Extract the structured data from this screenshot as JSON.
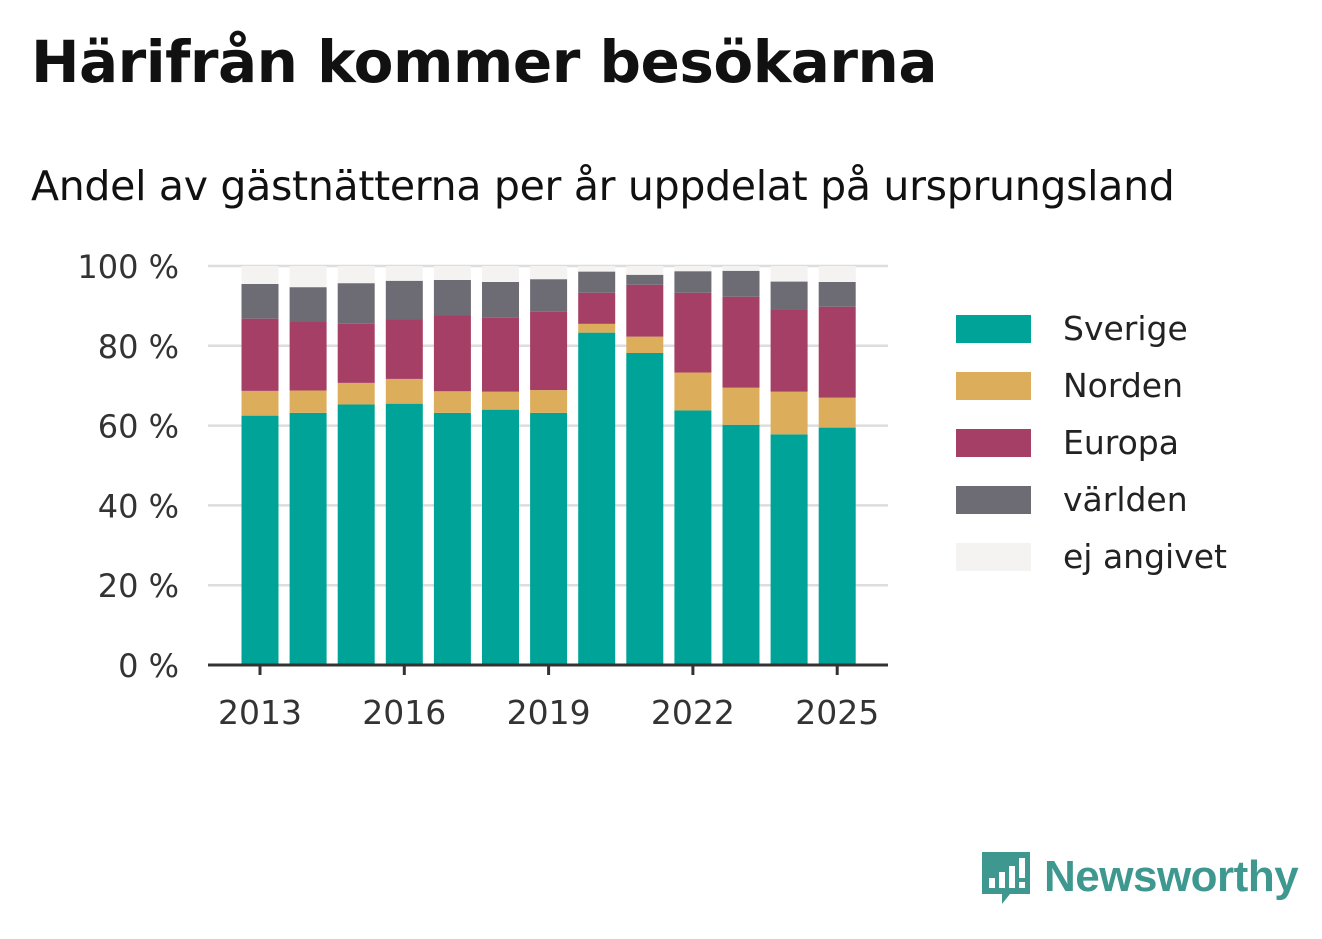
{
  "header": {
    "title": "Härifrån kommer besökarna",
    "subtitle": "Andel av gästnätterna per år uppdelat på ursprungsland"
  },
  "brand": {
    "name": "Newsworthy",
    "color": "#3f9890",
    "icon": "newsworthy-logo-icon"
  },
  "chart_data": {
    "type": "bar",
    "stacked": true,
    "categories": [
      "2013",
      "2014",
      "2015",
      "2016",
      "2017",
      "2018",
      "2019",
      "2020",
      "2021",
      "2022",
      "2023",
      "2024",
      "2025"
    ],
    "x_tick_labels": [
      "2013",
      "2016",
      "2019",
      "2022",
      "2025"
    ],
    "y_tick_labels": [
      "0 %",
      "20 %",
      "40 %",
      "60 %",
      "80 %",
      "100 %"
    ],
    "ylim": [
      0,
      100
    ],
    "grid": true,
    "legend_position": "right",
    "series": [
      {
        "name": "Sverige",
        "color": "#00a398",
        "values": [
          62.5,
          63.2,
          65.3,
          65.5,
          63.2,
          64.0,
          63.2,
          83.3,
          78.2,
          63.8,
          60.2,
          57.8,
          59.5
        ]
      },
      {
        "name": "Norden",
        "color": "#dcae5c",
        "values": [
          6.2,
          5.6,
          5.4,
          6.2,
          5.4,
          4.5,
          5.7,
          2.2,
          4.1,
          9.5,
          9.3,
          10.7,
          7.5
        ]
      },
      {
        "name": "Europa",
        "color": "#a63f65",
        "values": [
          18.1,
          17.3,
          14.8,
          15.0,
          19.0,
          18.5,
          19.6,
          7.8,
          13.0,
          20.0,
          22.8,
          20.7,
          22.8
        ]
      },
      {
        "name": "världen",
        "color": "#6d6c74",
        "values": [
          8.7,
          8.6,
          10.2,
          9.6,
          8.9,
          9.0,
          8.2,
          5.3,
          2.5,
          5.4,
          6.5,
          6.9,
          6.2
        ]
      },
      {
        "name": "ej angivet",
        "color": "#f4f3f1",
        "values": [
          4.5,
          5.3,
          4.3,
          3.7,
          3.5,
          4.0,
          3.3,
          1.4,
          2.2,
          1.3,
          1.2,
          3.9,
          4.0
        ]
      }
    ]
  }
}
